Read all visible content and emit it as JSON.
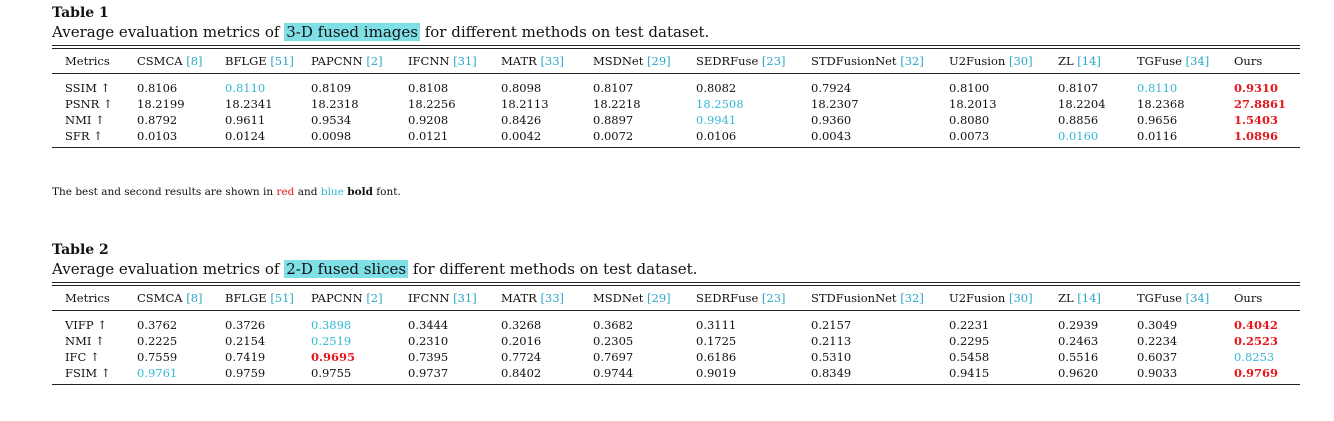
{
  "tables": [
    {
      "label": "Table 1",
      "caption_pre": "Average evaluation metrics of ",
      "caption_hl": "3-D fused images",
      "caption_post": " for different methods on test dataset.",
      "headers": [
        {
          "name": "Metrics",
          "ref": ""
        },
        {
          "name": "CSMCA",
          "ref": "[8]"
        },
        {
          "name": "BFLGE",
          "ref": "[51]"
        },
        {
          "name": "PAPCNN",
          "ref": "[2]"
        },
        {
          "name": "IFCNN",
          "ref": "[31]"
        },
        {
          "name": "MATR",
          "ref": "[33]"
        },
        {
          "name": "MSDNet",
          "ref": "[29]"
        },
        {
          "name": "SEDRFuse",
          "ref": "[23]"
        },
        {
          "name": "STDFusionNet",
          "ref": "[32]"
        },
        {
          "name": "U2Fusion",
          "ref": "[30]"
        },
        {
          "name": "ZL",
          "ref": "[14]"
        },
        {
          "name": "TGFuse",
          "ref": "[34]"
        },
        {
          "name": "Ours",
          "ref": ""
        }
      ],
      "rows": [
        {
          "metric": "SSIM ↑",
          "values": [
            "0.8106",
            "0.8110",
            "0.8109",
            "0.8108",
            "0.8098",
            "0.8107",
            "0.8082",
            "0.7924",
            "0.8100",
            "0.8107",
            "0.8110",
            "0.9310"
          ],
          "best": 11,
          "second": [
            1,
            10
          ]
        },
        {
          "metric": "PSNR ↑",
          "values": [
            "18.2199",
            "18.2341",
            "18.2318",
            "18.2256",
            "18.2113",
            "18.2218",
            "18.2508",
            "18.2307",
            "18.2013",
            "18.2204",
            "18.2368",
            "27.8861"
          ],
          "best": 11,
          "second": [
            6
          ]
        },
        {
          "metric": "NMI ↑",
          "values": [
            "0.8792",
            "0.9611",
            "0.9534",
            "0.9208",
            "0.8426",
            "0.8897",
            "0.9941",
            "0.9360",
            "0.8080",
            "0.8856",
            "0.9656",
            "1.5403"
          ],
          "best": 11,
          "second": [
            6
          ]
        },
        {
          "metric": "SFR ↑",
          "values": [
            "0.0103",
            "0.0124",
            "0.0098",
            "0.0121",
            "0.0042",
            "0.0072",
            "0.0106",
            "0.0043",
            "0.0073",
            "0.0160",
            "0.0116",
            "1.0896"
          ],
          "best": 11,
          "second": [
            9
          ]
        }
      ]
    },
    {
      "label": "Table 2",
      "caption_pre": "Average evaluation metrics of ",
      "caption_hl": "2-D fused slices",
      "caption_post": " for different methods on test dataset.",
      "headers": [
        {
          "name": "Metrics",
          "ref": ""
        },
        {
          "name": "CSMCA",
          "ref": "[8]"
        },
        {
          "name": "BFLGE",
          "ref": "[51]"
        },
        {
          "name": "PAPCNN",
          "ref": "[2]"
        },
        {
          "name": "IFCNN",
          "ref": "[31]"
        },
        {
          "name": "MATR",
          "ref": "[33]"
        },
        {
          "name": "MSDNet",
          "ref": "[29]"
        },
        {
          "name": "SEDRFuse",
          "ref": "[23]"
        },
        {
          "name": "STDFusionNet",
          "ref": "[32]"
        },
        {
          "name": "U2Fusion",
          "ref": "[30]"
        },
        {
          "name": "ZL",
          "ref": "[14]"
        },
        {
          "name": "TGFuse",
          "ref": "[34]"
        },
        {
          "name": "Ours",
          "ref": ""
        }
      ],
      "rows": [
        {
          "metric": "VIFP ↑",
          "values": [
            "0.3762",
            "0.3726",
            "0.3898",
            "0.3444",
            "0.3268",
            "0.3682",
            "0.3111",
            "0.2157",
            "0.2231",
            "0.2939",
            "0.3049",
            "0.4042"
          ],
          "best": 11,
          "second": [
            2
          ]
        },
        {
          "metric": "NMI ↑",
          "values": [
            "0.2225",
            "0.2154",
            "0.2519",
            "0.2310",
            "0.2016",
            "0.2305",
            "0.1725",
            "0.2113",
            "0.2295",
            "0.2463",
            "0.2234",
            "0.2523"
          ],
          "best": 11,
          "second": [
            2
          ]
        },
        {
          "metric": "IFC ↑",
          "values": [
            "0.7559",
            "0.7419",
            "0.9695",
            "0.7395",
            "0.7724",
            "0.7697",
            "0.6186",
            "0.5310",
            "0.5458",
            "0.5516",
            "0.6037",
            "0.8253"
          ],
          "best": 2,
          "second": [
            11
          ]
        },
        {
          "metric": "FSIM ↑",
          "values": [
            "0.9761",
            "0.9759",
            "0.9755",
            "0.9737",
            "0.8402",
            "0.9744",
            "0.9019",
            "0.8349",
            "0.9415",
            "0.9620",
            "0.9033",
            "0.9769"
          ],
          "best": 11,
          "second": [
            0
          ]
        }
      ]
    }
  ],
  "note": {
    "pre": "The best and second results are shown in ",
    "red": "red",
    "mid": " and ",
    "blue": "blue",
    "bold": "bold",
    "post": " font."
  },
  "colors": {
    "best": "#e8161b",
    "second": "#34b8d8",
    "ref": "#2aa7c9",
    "highlight": "#7fdfe6"
  }
}
